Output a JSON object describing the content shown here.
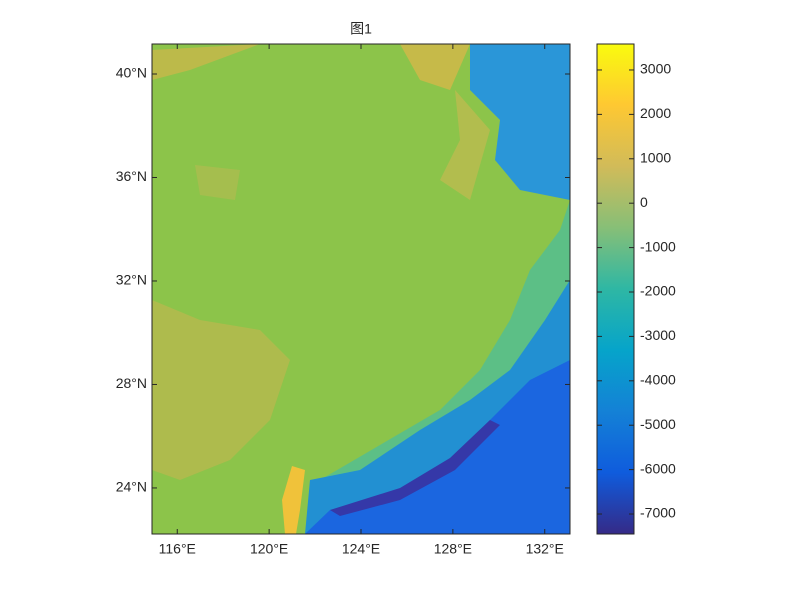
{
  "chart_data": {
    "type": "map",
    "title": "图1",
    "xlim": [
      114.9,
      133.1
    ],
    "ylim": [
      22.22,
      41.16
    ],
    "xticks": [
      {
        "value": 116,
        "label": "116°E"
      },
      {
        "value": 120,
        "label": "120°E"
      },
      {
        "value": 124,
        "label": "124°E"
      },
      {
        "value": 128,
        "label": "128°E"
      },
      {
        "value": 132,
        "label": "132°E"
      }
    ],
    "yticks": [
      {
        "value": 24,
        "label": "24°N"
      },
      {
        "value": 28,
        "label": "28°N"
      },
      {
        "value": 32,
        "label": "32°N"
      },
      {
        "value": 36,
        "label": "36°N"
      },
      {
        "value": 40,
        "label": "40°N"
      }
    ],
    "colorbar": {
      "clim": [
        -7450,
        3585
      ],
      "ticks": [
        -7000,
        -6000,
        -5000,
        -4000,
        -3000,
        -2000,
        -1000,
        0,
        1000,
        2000,
        3000
      ]
    }
  }
}
